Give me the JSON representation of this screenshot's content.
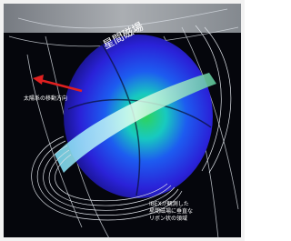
{
  "labels": {
    "field": "星間磁場",
    "motion": "太陽系の移動方向",
    "ribbon": [
      "IBEXが観測した",
      "星間磁場に垂直な",
      "リボン状の領域"
    ]
  }
}
